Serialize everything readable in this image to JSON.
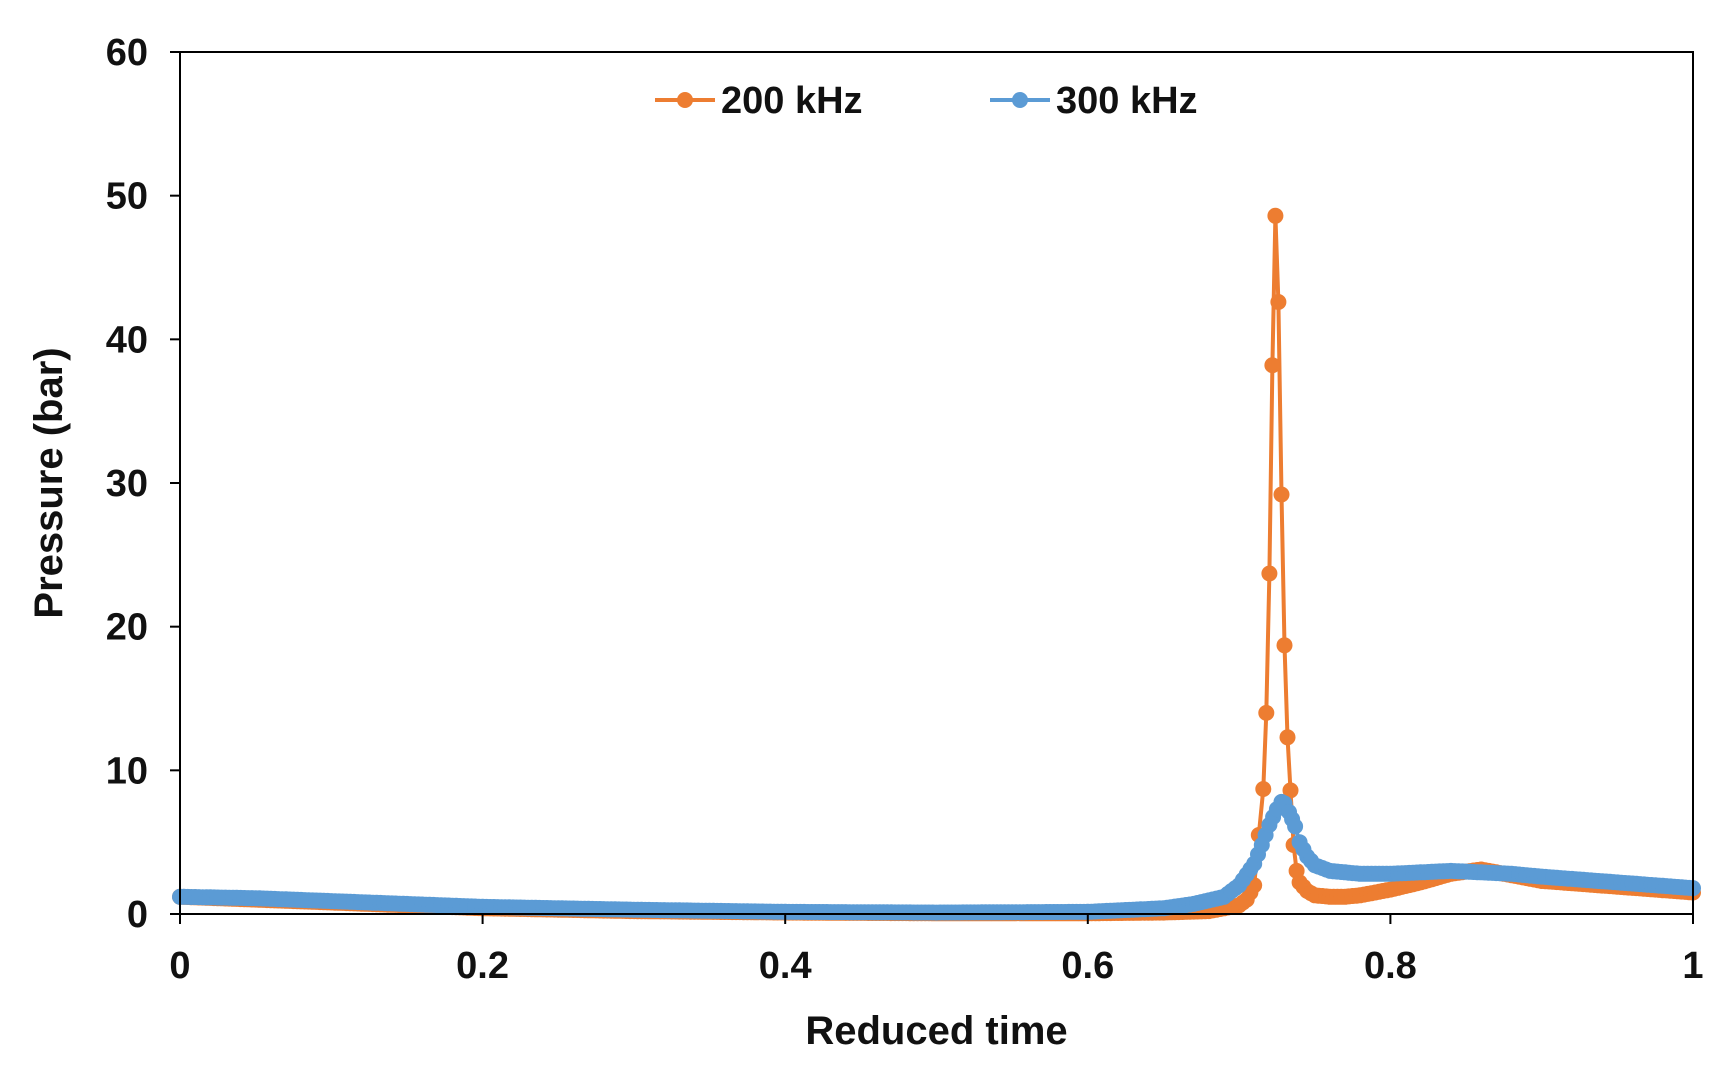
{
  "chart_data": {
    "type": "line",
    "title": "",
    "xlabel": "Reduced time",
    "ylabel": "Pressure (bar)",
    "xlim": [
      0,
      1
    ],
    "ylim": [
      0,
      60
    ],
    "xticks": [
      0,
      0.2,
      0.4,
      0.6,
      0.8,
      1
    ],
    "xtick_labels": [
      "0",
      "0.2",
      "0.4",
      "0.6",
      "0.8",
      "1"
    ],
    "yticks": [
      0,
      10,
      20,
      30,
      40,
      50,
      60
    ],
    "ytick_labels": [
      "0",
      "10",
      "20",
      "30",
      "40",
      "50",
      "60"
    ],
    "grid": false,
    "legend_position": "top-center",
    "series": [
      {
        "name": "200 kHz",
        "color": "#ED7D31",
        "x": [
          0,
          0.05,
          0.1,
          0.15,
          0.2,
          0.3,
          0.4,
          0.5,
          0.6,
          0.65,
          0.68,
          0.7,
          0.705,
          0.71,
          0.713,
          0.716,
          0.718,
          0.72,
          0.722,
          0.724,
          0.726,
          0.728,
          0.73,
          0.732,
          0.734,
          0.736,
          0.738,
          0.74,
          0.745,
          0.75,
          0.76,
          0.77,
          0.78,
          0.79,
          0.8,
          0.82,
          0.84,
          0.86,
          0.88,
          0.9,
          0.95,
          1
        ],
        "y": [
          1.2,
          1.0,
          0.8,
          0.6,
          0.4,
          0.2,
          0.1,
          0.05,
          0.05,
          0.1,
          0.2,
          0.6,
          1.0,
          2.0,
          5.5,
          8.7,
          14.0,
          23.7,
          38.2,
          48.6,
          42.6,
          29.2,
          18.7,
          12.3,
          8.6,
          4.8,
          3.0,
          2.2,
          1.6,
          1.3,
          1.2,
          1.2,
          1.3,
          1.5,
          1.7,
          2.2,
          2.8,
          3.1,
          2.7,
          2.3,
          1.9,
          1.5
        ]
      },
      {
        "name": "300 kHz",
        "color": "#5B9BD5",
        "x": [
          0,
          0.05,
          0.1,
          0.15,
          0.2,
          0.3,
          0.4,
          0.5,
          0.6,
          0.65,
          0.67,
          0.69,
          0.7,
          0.71,
          0.715,
          0.72,
          0.725,
          0.728,
          0.73,
          0.733,
          0.737,
          0.74,
          0.745,
          0.75,
          0.76,
          0.77,
          0.78,
          0.8,
          0.82,
          0.84,
          0.86,
          0.88,
          0.9,
          0.95,
          1
        ],
        "y": [
          1.2,
          1.1,
          0.9,
          0.7,
          0.5,
          0.3,
          0.15,
          0.1,
          0.15,
          0.4,
          0.7,
          1.2,
          2.0,
          3.5,
          4.8,
          6.2,
          7.3,
          7.8,
          7.7,
          7.1,
          6.1,
          5.0,
          4.0,
          3.4,
          3.0,
          2.9,
          2.8,
          2.8,
          2.9,
          3.0,
          2.9,
          2.8,
          2.6,
          2.2,
          1.8
        ]
      }
    ]
  }
}
